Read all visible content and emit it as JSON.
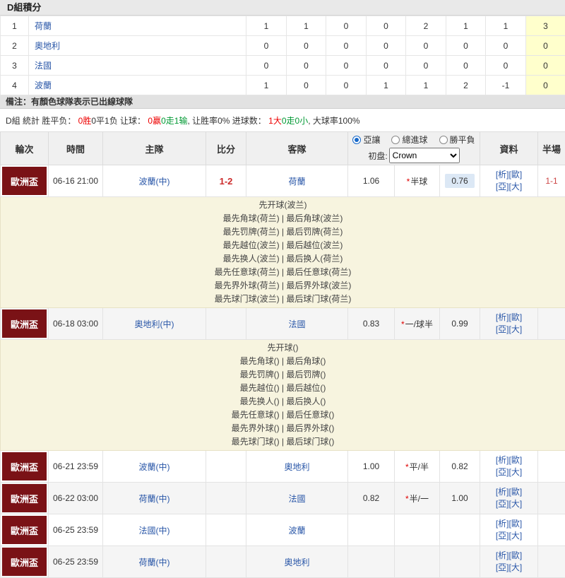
{
  "colors": {
    "maroon": "#7a1216",
    "link": "#2a57a8",
    "score_red": "#cc2b2b",
    "half_red": "#cc4444",
    "yellow_bg": "#f7f4df",
    "points_bg": "#ffffcc",
    "highlight_blue": "#dce8f5",
    "header_bg": "#f0f0f0",
    "bar_bg": "#e9e9e9",
    "note_bg": "#e2e2e2",
    "stat_red": "#ee0000",
    "stat_green": "#009933"
  },
  "standings": {
    "title": "D組積分",
    "rows": [
      {
        "rank": "1",
        "team": "荷蘭",
        "values": [
          "1",
          "1",
          "0",
          "0",
          "2",
          "1",
          "1"
        ],
        "points": "3"
      },
      {
        "rank": "2",
        "team": "奧地利",
        "values": [
          "0",
          "0",
          "0",
          "0",
          "0",
          "0",
          "0"
        ],
        "points": "0"
      },
      {
        "rank": "3",
        "team": "法國",
        "values": [
          "0",
          "0",
          "0",
          "0",
          "0",
          "0",
          "0"
        ],
        "points": "0"
      },
      {
        "rank": "4",
        "team": "波蘭",
        "values": [
          "1",
          "0",
          "0",
          "1",
          "1",
          "2",
          "-1"
        ],
        "points": "0"
      }
    ],
    "note": "備注：有顏色球隊表示已出線球隊"
  },
  "stats_line": {
    "segments": [
      {
        "text": "D組 統計 胜平负： ",
        "color": "#333333"
      },
      {
        "text": "0胜",
        "color": "#ee0000"
      },
      {
        "text": "0平1负",
        "color": "#333333"
      },
      {
        "text": " 让球： ",
        "color": "#333333"
      },
      {
        "text": "0赢",
        "color": "#ee0000"
      },
      {
        "text": "0走",
        "color": "#009933"
      },
      {
        "text": "1输",
        "color": "#009933"
      },
      {
        "text": ", 让胜率0% 进球数： ",
        "color": "#333333"
      },
      {
        "text": "1大",
        "color": "#ee0000"
      },
      {
        "text": "0走",
        "color": "#009933"
      },
      {
        "text": "0小",
        "color": "#009933"
      },
      {
        "text": ", 大球率100%",
        "color": "#333333"
      }
    ]
  },
  "schedule": {
    "headers": {
      "round": "輪次",
      "time": "時間",
      "home": "主隊",
      "score": "比分",
      "away": "客隊",
      "info": "資料",
      "half": "半場"
    },
    "odds_header": {
      "radios": [
        {
          "label": "亞讓",
          "checked": true,
          "name": "asian-handicap"
        },
        {
          "label": "總進球",
          "checked": false,
          "name": "total-goals"
        },
        {
          "label": "勝平負",
          "checked": false,
          "name": "win-draw-lose"
        }
      ],
      "initial_label": "初盘:",
      "bookmaker": "Crown"
    },
    "info_links": [
      {
        "label": "[析]",
        "name": "analysis"
      },
      {
        "label": "[歐]",
        "name": "euro-odds"
      },
      {
        "label": "[亞]",
        "name": "asia-odds"
      },
      {
        "label": "[大]",
        "name": "over-under"
      }
    ],
    "matches": [
      {
        "round": "歐洲盃",
        "time": "06-16 21:00",
        "home": "波蘭(中)",
        "score": "1-2",
        "away": "荷蘭",
        "odds_home": "1.06",
        "handicap": "半球",
        "odds_away": "0.76",
        "odds_away_highlight": true,
        "half": "1-1",
        "details": [
          "先开球(波兰)",
          "最先角球(荷兰) | 最后角球(波兰)",
          "最先罚牌(荷兰) | 最后罚牌(荷兰)",
          "最先越位(波兰) | 最后越位(波兰)",
          "最先换人(波兰) | 最后换人(荷兰)",
          "最先任意球(荷兰) | 最后任意球(荷兰)",
          "最先界外球(荷兰) | 最后界外球(波兰)",
          "最先球门球(波兰) | 最后球门球(荷兰)"
        ]
      },
      {
        "round": "歐洲盃",
        "time": "06-18 03:00",
        "home": "奧地利(中)",
        "score": "",
        "away": "法國",
        "odds_home": "0.83",
        "handicap": "一/球半",
        "odds_away": "0.99",
        "odds_away_highlight": false,
        "half": "",
        "details": [
          "先开球()",
          "最先角球() | 最后角球()",
          "最先罚牌() | 最后罚牌()",
          "最先越位() | 最后越位()",
          "最先换人() | 最后换人()",
          "最先任意球() | 最后任意球()",
          "最先界外球() | 最后界外球()",
          "最先球门球() | 最后球门球()"
        ]
      },
      {
        "round": "歐洲盃",
        "time": "06-21 23:59",
        "home": "波蘭(中)",
        "score": "",
        "away": "奧地利",
        "odds_home": "1.00",
        "handicap": "平/半",
        "odds_away": "0.82",
        "odds_away_highlight": false,
        "half": ""
      },
      {
        "round": "歐洲盃",
        "time": "06-22 03:00",
        "home": "荷蘭(中)",
        "score": "",
        "away": "法國",
        "odds_home": "0.82",
        "handicap": "半/一",
        "odds_away": "1.00",
        "odds_away_highlight": false,
        "half": ""
      },
      {
        "round": "歐洲盃",
        "time": "06-25 23:59",
        "home": "法國(中)",
        "score": "",
        "away": "波蘭",
        "odds_home": "",
        "handicap": "",
        "odds_away": "",
        "odds_away_highlight": false,
        "half": ""
      },
      {
        "round": "歐洲盃",
        "time": "06-25 23:59",
        "home": "荷蘭(中)",
        "score": "",
        "away": "奧地利",
        "odds_home": "",
        "handicap": "",
        "odds_away": "",
        "odds_away_highlight": false,
        "half": ""
      }
    ]
  }
}
